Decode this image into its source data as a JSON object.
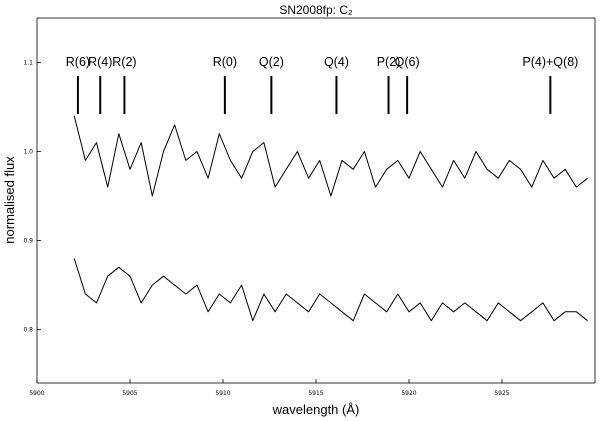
{
  "chart_data": {
    "type": "line",
    "title": "SN2008fp: C₂",
    "xlabel": "wavelength (Å)",
    "ylabel": "normalised flux",
    "xlim": [
      5900,
      5930
    ],
    "ylim": [
      0.74,
      1.15
    ],
    "x_ticks": [
      5900,
      5905,
      5910,
      5915,
      5920,
      5925
    ],
    "x_tick_labels": [
      "5900",
      "5905",
      "5910",
      "5915",
      "5920",
      "5925"
    ],
    "y_ticks": [
      0.8,
      0.9,
      1.0,
      1.1
    ],
    "y_tick_labels": [
      "0.8",
      "0.9",
      "1.0",
      "1.1"
    ],
    "grid": false,
    "legend": "none",
    "series": [
      {
        "x": [
          5902.0,
          5902.6,
          5903.2,
          5903.8,
          5904.4,
          5905.0,
          5905.6,
          5906.2,
          5906.8,
          5907.4,
          5908.0,
          5908.6,
          5909.2,
          5909.8,
          5910.4,
          5911.0,
          5911.6,
          5912.2,
          5912.8,
          5913.4,
          5914.0,
          5914.6,
          5915.2,
          5915.8,
          5916.4,
          5917.0,
          5917.6,
          5918.2,
          5918.8,
          5919.4,
          5920.0,
          5920.6,
          5921.2,
          5921.8,
          5922.4,
          5923.0,
          5923.6,
          5924.2,
          5924.8,
          5925.4,
          5926.0,
          5926.6,
          5927.2,
          5927.8,
          5928.4,
          5929.0,
          5929.6
        ],
        "y": [
          1.04,
          0.99,
          1.01,
          0.96,
          1.02,
          0.98,
          1.01,
          0.95,
          1.0,
          1.03,
          0.99,
          1.0,
          0.97,
          1.02,
          0.99,
          0.97,
          1.0,
          1.01,
          0.96,
          0.98,
          1.0,
          0.97,
          0.99,
          0.95,
          0.99,
          0.98,
          1.0,
          0.96,
          0.98,
          0.99,
          0.97,
          1.0,
          0.98,
          0.96,
          0.99,
          0.97,
          1.0,
          0.98,
          0.97,
          0.99,
          0.98,
          0.96,
          0.99,
          0.97,
          0.98,
          0.96,
          0.97
        ]
      },
      {
        "x": [
          5902.0,
          5902.6,
          5903.2,
          5903.8,
          5904.4,
          5905.0,
          5905.6,
          5906.2,
          5906.8,
          5907.4,
          5908.0,
          5908.6,
          5909.2,
          5909.8,
          5910.4,
          5911.0,
          5911.6,
          5912.2,
          5912.8,
          5913.4,
          5914.0,
          5914.6,
          5915.2,
          5915.8,
          5916.4,
          5917.0,
          5917.6,
          5918.2,
          5918.8,
          5919.4,
          5920.0,
          5920.6,
          5921.2,
          5921.8,
          5922.4,
          5923.0,
          5923.6,
          5924.2,
          5924.8,
          5925.4,
          5926.0,
          5926.6,
          5927.2,
          5927.8,
          5928.4,
          5929.0,
          5929.6
        ],
        "y": [
          0.88,
          0.84,
          0.83,
          0.86,
          0.87,
          0.86,
          0.83,
          0.85,
          0.86,
          0.85,
          0.84,
          0.85,
          0.82,
          0.84,
          0.83,
          0.85,
          0.81,
          0.84,
          0.82,
          0.84,
          0.83,
          0.82,
          0.84,
          0.83,
          0.82,
          0.81,
          0.84,
          0.83,
          0.82,
          0.84,
          0.82,
          0.83,
          0.81,
          0.83,
          0.82,
          0.83,
          0.82,
          0.81,
          0.83,
          0.82,
          0.81,
          0.82,
          0.83,
          0.81,
          0.82,
          0.82,
          0.81
        ]
      }
    ],
    "line_markers": [
      {
        "label": "R(6)",
        "x": 5902.2
      },
      {
        "label": "R(4)",
        "x": 5903.4
      },
      {
        "label": "R(2)",
        "x": 5904.7
      },
      {
        "label": "R(0)",
        "x": 5910.1
      },
      {
        "label": "Q(2)",
        "x": 5912.6
      },
      {
        "label": "Q(4)",
        "x": 5916.1
      },
      {
        "label": "P(2)",
        "x": 5918.9
      },
      {
        "label": "Q(6)",
        "x": 5919.9
      },
      {
        "label": "P(4)+Q(8)",
        "x": 5927.6
      }
    ]
  }
}
